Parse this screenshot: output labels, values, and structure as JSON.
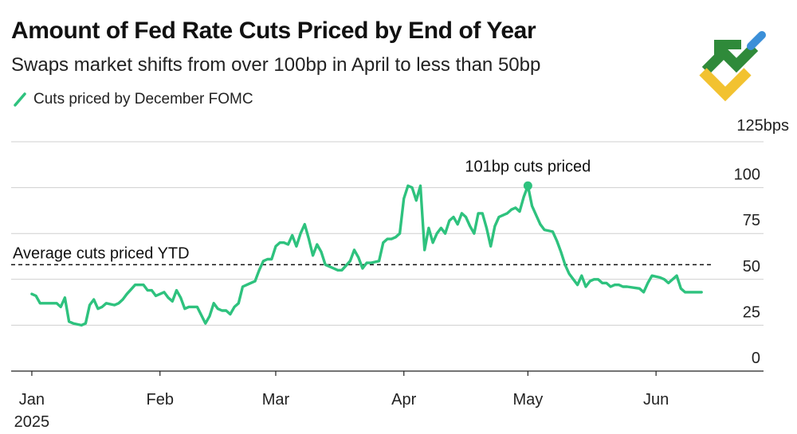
{
  "chart_data": {
    "type": "line",
    "title": "Amount of Fed Rate Cuts Priced by End of Year",
    "subtitle": "Swaps market shifts from over 100bp in April to less than 50bp",
    "legend": [
      {
        "label": "Cuts priced by December FOMC",
        "color": "#2ec27e"
      }
    ],
    "y_unit_label": "125bps",
    "ylim": [
      0,
      125
    ],
    "y_ticks": [
      0,
      25,
      50,
      75,
      100
    ],
    "y_tick_labels": [
      "0",
      "25",
      "50",
      "75",
      "100"
    ],
    "x_ticks": [
      0,
      31,
      59,
      90,
      120,
      151
    ],
    "x_tick_labels": [
      "Jan",
      "Feb",
      "Mar",
      "Apr",
      "May",
      "Jun"
    ],
    "x_year_label": "2025",
    "xlim": [
      -5,
      177
    ],
    "grid": true,
    "series": [
      {
        "name": "Cuts priced by December FOMC",
        "x": [
          0,
          1,
          2,
          4,
          6,
          7,
          8,
          9,
          10,
          12,
          13,
          14,
          15,
          16,
          17,
          18,
          20,
          21,
          22,
          23,
          25,
          27,
          28,
          29,
          30,
          32,
          33,
          34,
          35,
          36,
          37,
          38,
          40,
          42,
          43,
          44,
          45,
          46,
          47,
          48,
          49,
          50,
          51,
          52,
          54,
          55,
          56,
          57,
          58,
          59,
          60,
          61,
          62,
          63,
          64,
          65,
          66,
          67,
          68,
          69,
          70,
          71,
          72,
          73,
          74,
          75,
          77,
          78,
          79,
          80,
          81,
          82,
          84,
          85,
          86,
          87,
          88,
          89,
          90,
          91,
          92,
          93,
          94,
          95,
          96,
          97,
          98,
          99,
          100,
          101,
          102,
          103,
          104,
          105,
          106,
          107,
          108,
          109,
          110,
          111,
          112,
          113,
          114,
          115,
          116,
          117,
          118,
          119,
          120,
          121,
          122,
          123,
          124,
          126,
          127,
          128,
          129,
          130,
          131,
          132,
          133,
          134,
          135,
          136,
          137,
          138,
          139,
          140,
          141,
          142,
          143,
          144,
          147,
          148,
          149,
          150,
          152,
          153,
          154,
          156,
          157,
          158,
          159,
          160,
          161,
          162
        ],
        "values": [
          42,
          41,
          37,
          37,
          37,
          35,
          40,
          27,
          26,
          25,
          26,
          36,
          39,
          34,
          35,
          37,
          36,
          37,
          39,
          42,
          47,
          47,
          44,
          44,
          41,
          43,
          40,
          38,
          44,
          40,
          34,
          35,
          35,
          26,
          30,
          37,
          34,
          33,
          33,
          31,
          35,
          37,
          46,
          47,
          49,
          55,
          60,
          61,
          61,
          68,
          70,
          70,
          69,
          74,
          68,
          75,
          80,
          72,
          63,
          69,
          65,
          58,
          57,
          56,
          55,
          55,
          60,
          66,
          62,
          56,
          59,
          59,
          60,
          70,
          72,
          72,
          73,
          75,
          94,
          101,
          100,
          93,
          101,
          66,
          78,
          70,
          75,
          78,
          75,
          82,
          84,
          80,
          86,
          84,
          79,
          75,
          86,
          86,
          78,
          68,
          79,
          84,
          85,
          86,
          88,
          89,
          87,
          95,
          101,
          90,
          85,
          80,
          77,
          76,
          71,
          65,
          58,
          53,
          50,
          47,
          52,
          46,
          49,
          50,
          50,
          48,
          48,
          46,
          47,
          47,
          46,
          46,
          45,
          43,
          48,
          52,
          51,
          50,
          48,
          52,
          45,
          43,
          43,
          43,
          43,
          43
        ]
      }
    ],
    "average": {
      "value": 58,
      "label": "Average cuts priced YTD"
    },
    "annotation": {
      "x": 120,
      "value": 101,
      "label": "101bp cuts priced"
    }
  },
  "logo": {
    "name": "brand-logo",
    "colors": [
      "#2f8a3a",
      "#f2c230",
      "#3b8fd8"
    ]
  }
}
